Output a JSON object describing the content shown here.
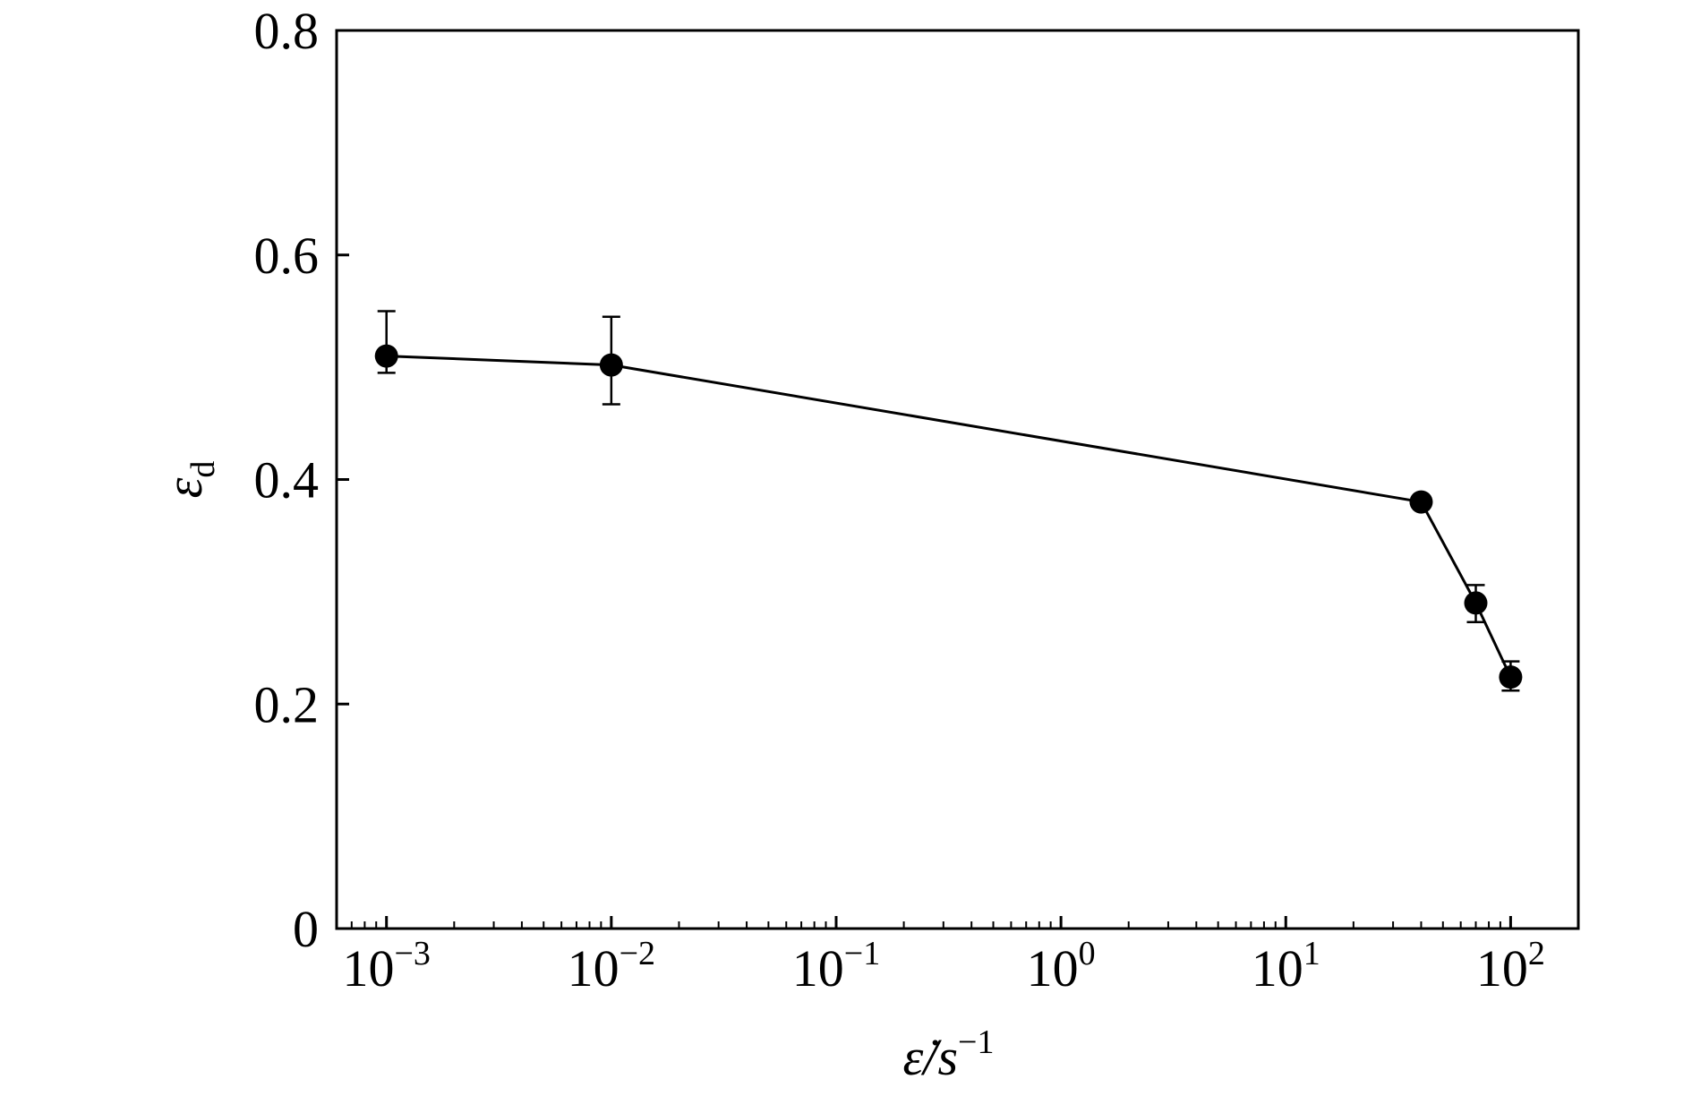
{
  "chart_data": {
    "type": "line",
    "xscale": "log",
    "minor_ticks": true,
    "color": "#000000",
    "xlabel": "ε̇/s",
    "xlabel_sup": "−1",
    "ylabel": "ε",
    "ylabel_sub": "d",
    "x": [
      0.001,
      0.01,
      40,
      70,
      100
    ],
    "series": [
      {
        "values": [
          0.51,
          0.502,
          0.38,
          0.29,
          0.224
        ],
        "yerr_minus": [
          0.015,
          0.035,
          null,
          0.017,
          0.012
        ],
        "yerr_plus": [
          0.04,
          0.043,
          null,
          0.016,
          0.014
        ]
      }
    ],
    "xlim": [
      0.0006,
      200
    ],
    "xticks": [
      {
        "value": 0.001,
        "label": "10",
        "exponent": "−3"
      },
      {
        "value": 0.01,
        "label": "10",
        "exponent": "−2"
      },
      {
        "value": 0.1,
        "label": "10",
        "exponent": "−1"
      },
      {
        "value": 1,
        "label": "10",
        "exponent": "0"
      },
      {
        "value": 10,
        "label": "10",
        "exponent": "1"
      },
      {
        "value": 100,
        "label": "10",
        "exponent": "2"
      }
    ],
    "ylim": [
      0,
      0.8
    ],
    "yticks": [
      0,
      0.2,
      0.4,
      0.6,
      0.8
    ]
  }
}
